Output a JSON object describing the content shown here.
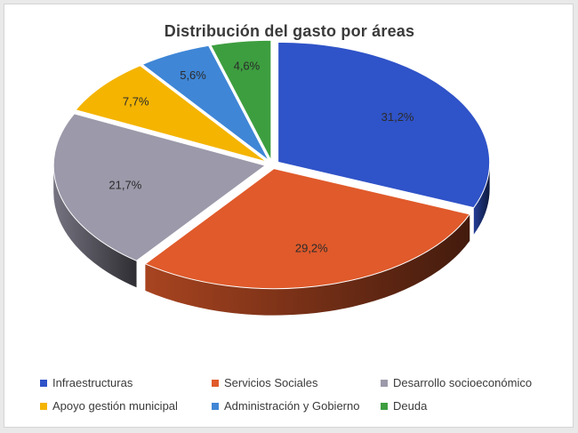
{
  "chart_data": {
    "type": "pie",
    "title": "Distribución del gasto por áreas",
    "categories": [
      "Infraestructuras",
      "Servicios Sociales",
      "Desarrollo socioeconómico",
      "Apoyo gestión municipal",
      "Administración y Gobierno",
      "Deuda"
    ],
    "values": [
      31.2,
      29.2,
      21.7,
      7.7,
      5.6,
      4.6
    ],
    "data_labels": [
      "31,2%",
      "29,2%",
      "21,7%",
      "7,7%",
      "5,6%",
      "4,6%"
    ],
    "colors": [
      "#2f53c8",
      "#e05a2b",
      "#9c99aa",
      "#f4b400",
      "#3f86d6",
      "#3d9e3f"
    ],
    "legend_position": "bottom",
    "style": "3d-exploded"
  }
}
